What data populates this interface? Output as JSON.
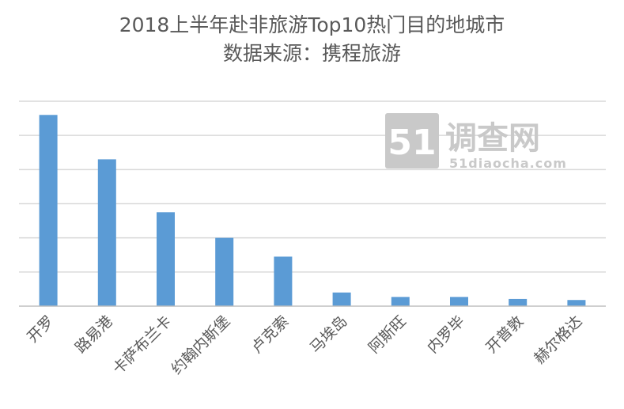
{
  "chart_data": {
    "type": "bar",
    "title": "2018上半年赴非旅游Top10热门目的地城市",
    "subtitle": "数据来源：携程旅游",
    "xlabel": "",
    "ylabel": "",
    "categories": [
      "开罗",
      "路易港",
      "卡萨布兰卡",
      "约翰内斯堡",
      "卢克索",
      "马埃岛",
      "阿斯旺",
      "内罗毕",
      "开普敦",
      "赫尔格达"
    ],
    "values": [
      5.6,
      4.3,
      2.75,
      2.0,
      1.45,
      0.4,
      0.27,
      0.27,
      0.21,
      0.18
    ],
    "ylim": [
      0,
      6
    ],
    "grid": true,
    "y_tick_labels_shown": false,
    "legend": "none",
    "bar_color": "#5b9bd5"
  },
  "watermark": {
    "number": "51",
    "name": "调查网",
    "url": "51diaocha.com"
  }
}
